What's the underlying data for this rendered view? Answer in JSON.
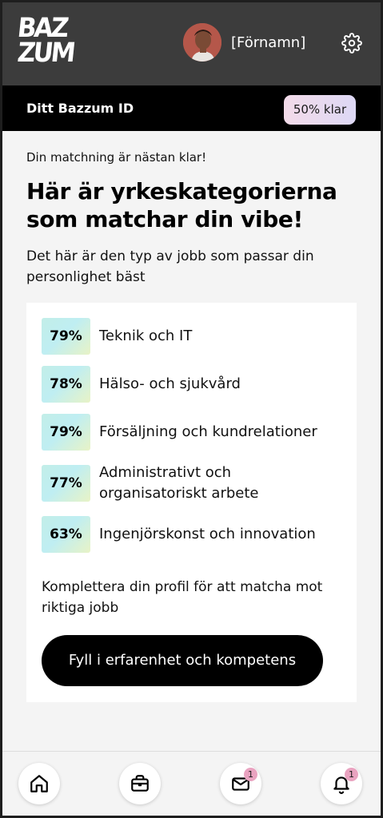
{
  "header": {
    "logo_line1": "BAZ",
    "logo_line2": "ZUM",
    "username": "[Förnamn]",
    "icons": [
      "avatar",
      "gear-icon"
    ]
  },
  "idbar": {
    "title": "Ditt Bazzum ID",
    "progress_label": "50% klar",
    "progress_value": 0.5
  },
  "main": {
    "pretitle": "Din matchning är nästan klar!",
    "heading": "Här är yrkeskategorierna som matchar din vibe!",
    "subtitle": "Det här är den typ av jobb som passar din personlighet bäst",
    "categories": [
      {
        "percent": "79%",
        "label": "Teknik och IT"
      },
      {
        "percent": "78%",
        "label": "Hälso- och sjukvård"
      },
      {
        "percent": "79%",
        "label": "Försäljning och kundrelationer"
      },
      {
        "percent": "77%",
        "label": "Administrativt och organisatoriskt arbete"
      },
      {
        "percent": "63%",
        "label": "Ingenjörskonst och innovation"
      }
    ],
    "complete_text": "Komplettera din profil för att matcha mot riktiga jobb",
    "cta_label": "Fyll i erfarenhet och kompetens"
  },
  "bottom_nav": {
    "items": [
      {
        "icon": "home-icon"
      },
      {
        "icon": "briefcase-icon"
      },
      {
        "icon": "mail-icon",
        "badge": "1"
      },
      {
        "icon": "bell-icon",
        "badge": "1"
      }
    ]
  },
  "colors": {
    "header_bg": "#3c3c3c",
    "idbar_bg": "#000000",
    "badge_bg": "#e8d8ef",
    "percent_bg": "#c2eee8",
    "notification_badge": "#e9a3c0"
  }
}
